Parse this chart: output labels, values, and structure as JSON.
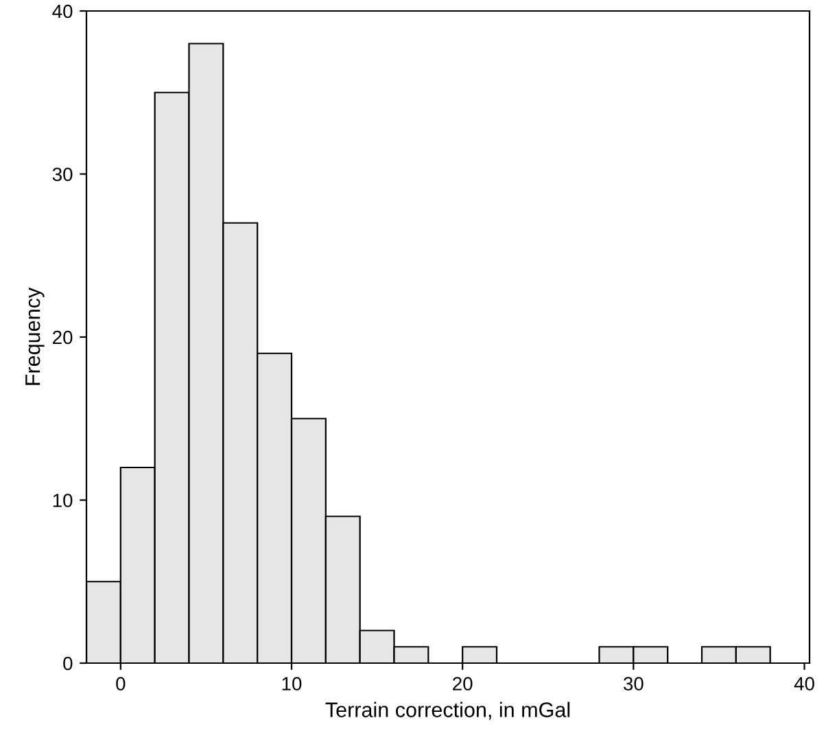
{
  "chart_data": {
    "type": "histogram",
    "xlabel": "Terrain correction, in mGal",
    "ylabel": "Frequency",
    "bins": [
      -2,
      0,
      2,
      4,
      6,
      8,
      10,
      12,
      14,
      16,
      18,
      20,
      22,
      24,
      26,
      28,
      30,
      32,
      34,
      36,
      38
    ],
    "values": [
      5,
      12,
      35,
      38,
      27,
      19,
      15,
      9,
      2,
      1,
      0,
      1,
      0,
      0,
      0,
      1,
      1,
      0,
      1,
      1
    ],
    "color": "#e6e6e6",
    "xlim": [
      -2,
      40.3
    ],
    "ylim": [
      0,
      40
    ],
    "xticks": [
      0,
      10,
      20,
      30,
      40
    ],
    "yticks": [
      0,
      10,
      20,
      30,
      40
    ],
    "grid": false
  }
}
